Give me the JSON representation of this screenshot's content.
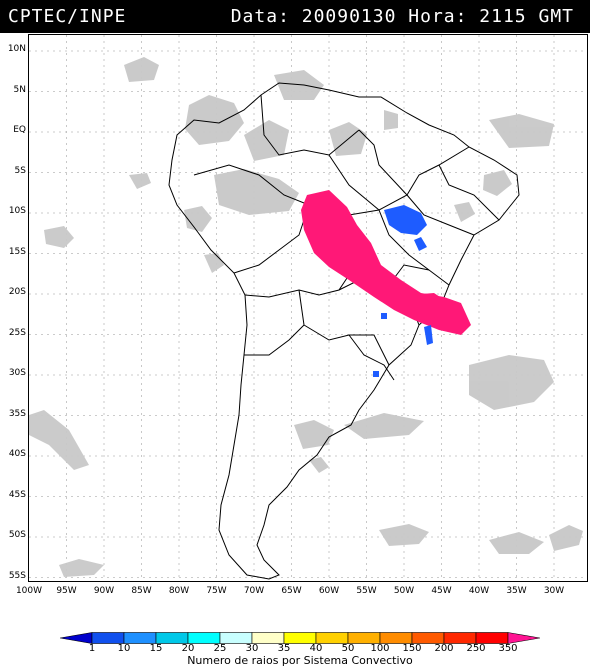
{
  "header": {
    "source": "CPTEC/INPE",
    "datetime": "Data: 20090130 Hora: 2115 GMT"
  },
  "lat_labels": [
    "10N",
    "5N",
    "EQ",
    "5S",
    "10S",
    "15S",
    "20S",
    "25S",
    "30S",
    "35S",
    "40S",
    "45S",
    "50S",
    "55S"
  ],
  "lon_labels": [
    "100W",
    "95W",
    "90W",
    "85W",
    "80W",
    "75W",
    "70W",
    "65W",
    "60W",
    "55W",
    "50W",
    "45W",
    "40W",
    "35W",
    "30W"
  ],
  "colorbar": {
    "labels": [
      "1",
      "10",
      "15",
      "20",
      "25",
      "30",
      "35",
      "40",
      "50",
      "100",
      "150",
      "200",
      "250",
      "350"
    ],
    "colors": [
      "#0000cc",
      "#1050ee",
      "#1e90ff",
      "#00c8e8",
      "#00ffff",
      "#c8ffff",
      "#ffffc8",
      "#ffff00",
      "#ffd000",
      "#ffb000",
      "#ff8c00",
      "#ff5a00",
      "#ff2800",
      "#ff0000",
      "#ff1493"
    ],
    "title": "Numero de raios por Sistema Convectivo"
  },
  "colors": {
    "cloud": "#c8c8c8",
    "lightning_high": "#ff1877",
    "lightning_low": "#1e5cff",
    "coast": "#000000",
    "grid": "#bbbbbb"
  }
}
